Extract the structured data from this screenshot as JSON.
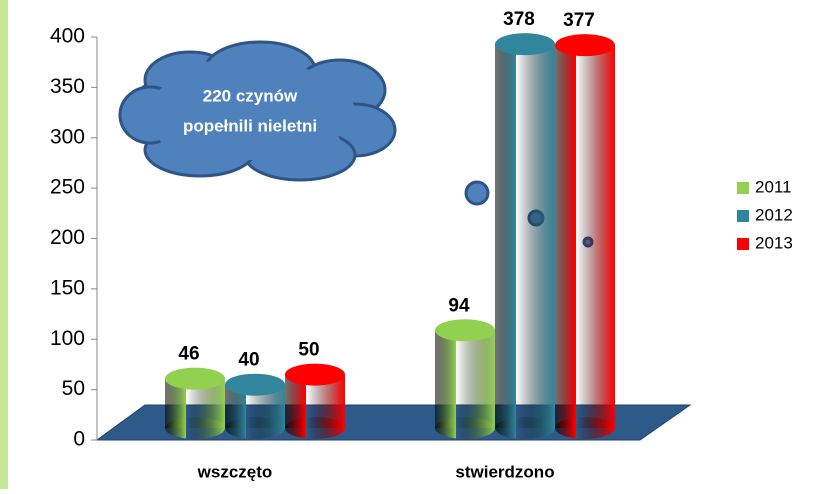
{
  "chart_data": {
    "type": "bar",
    "categories": [
      "wszczęto",
      "stwierdzono"
    ],
    "series": [
      {
        "name": "2011",
        "color": "#92d050",
        "values": [
          46,
          94
        ]
      },
      {
        "name": "2012",
        "color": "#31859c",
        "values": [
          40,
          378
        ]
      },
      {
        "name": "2013",
        "color": "#ff0000",
        "values": [
          50,
          377
        ]
      }
    ],
    "ylim": [
      0,
      400
    ],
    "yticks": [
      0,
      50,
      100,
      150,
      200,
      250,
      300,
      350,
      400
    ],
    "annotation": [
      "220 czynów",
      "popełnili nieletni"
    ],
    "legend": "right"
  }
}
